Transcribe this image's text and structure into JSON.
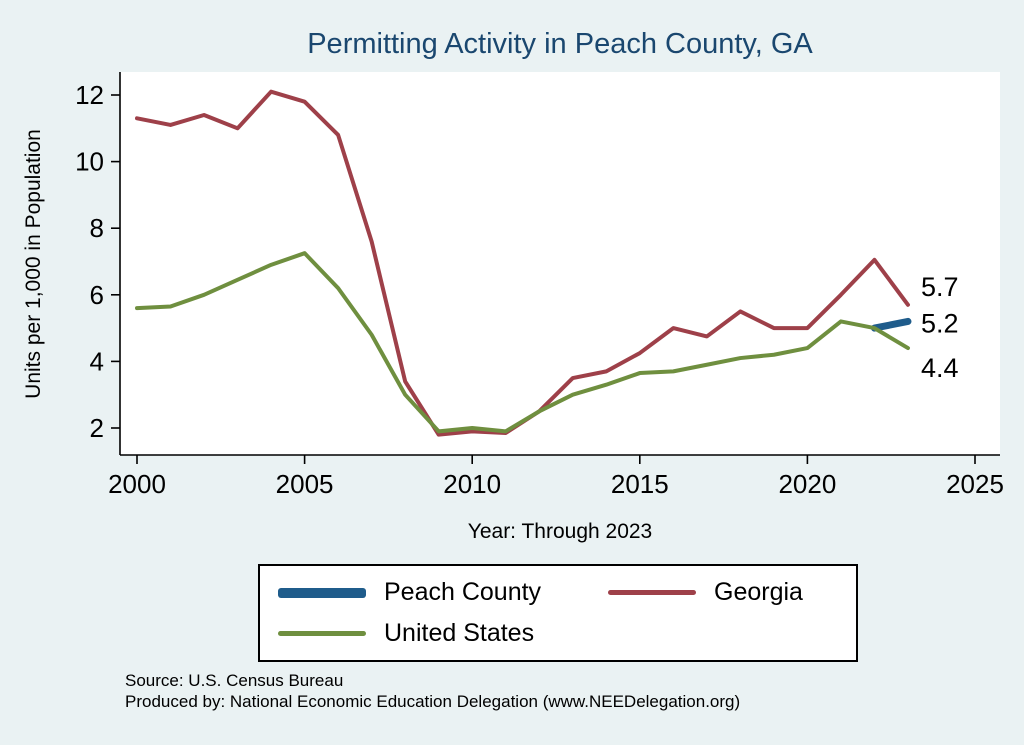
{
  "title": "Permitting Activity in Peach County, GA",
  "xlabel": "Year: Through 2023",
  "ylabel": "Units per 1,000 in Population",
  "source_line1": "Source: U.S. Census Bureau",
  "source_line2": "Produced by: National Economic Education Delegation (www.NEEDelegation.org)",
  "chart_data": {
    "type": "line",
    "title": "Permitting Activity in Peach County, GA",
    "xlabel": "Year: Through 2023",
    "ylabel": "Units per 1,000 in Population",
    "x_ticks": [
      2000,
      2005,
      2010,
      2015,
      2020,
      2025
    ],
    "y_ticks": [
      2,
      4,
      6,
      8,
      10,
      12
    ],
    "xlim": [
      1999.5,
      2025.7
    ],
    "ylim": [
      1.5,
      12.4
    ],
    "grid": false,
    "legend_position": "bottom",
    "colors": {
      "background": "#eaf2f3",
      "plot_background": "#ffffff",
      "title": "#1a476f",
      "axis": "#000000"
    },
    "series": [
      {
        "name": "Peach County",
        "color": "#1f5c8b",
        "width": 7,
        "x": [
          2022,
          2023
        ],
        "values": [
          5.0,
          5.2
        ]
      },
      {
        "name": "Georgia",
        "color": "#9e4049",
        "width": 4,
        "x": [
          2000,
          2001,
          2002,
          2003,
          2004,
          2005,
          2006,
          2007,
          2008,
          2009,
          2010,
          2011,
          2012,
          2013,
          2014,
          2015,
          2016,
          2017,
          2018,
          2019,
          2020,
          2021,
          2022,
          2023
        ],
        "values": [
          11.3,
          11.1,
          11.4,
          11.0,
          12.1,
          11.8,
          10.8,
          7.6,
          3.4,
          1.8,
          1.9,
          1.85,
          2.5,
          3.5,
          3.7,
          4.25,
          5.0,
          4.75,
          5.5,
          5.0,
          5.0,
          6.0,
          7.05,
          5.7
        ]
      },
      {
        "name": "United States",
        "color": "#6f8f3f",
        "width": 4,
        "x": [
          2000,
          2001,
          2002,
          2003,
          2004,
          2005,
          2006,
          2007,
          2008,
          2009,
          2010,
          2011,
          2012,
          2013,
          2014,
          2015,
          2016,
          2017,
          2018,
          2019,
          2020,
          2021,
          2022,
          2023
        ],
        "values": [
          5.6,
          5.65,
          6.0,
          6.45,
          6.9,
          7.25,
          6.2,
          4.8,
          3.0,
          1.9,
          2.0,
          1.9,
          2.5,
          3.0,
          3.3,
          3.65,
          3.7,
          3.9,
          4.1,
          4.2,
          4.4,
          5.2,
          5.0,
          4.4
        ]
      }
    ],
    "end_labels": [
      {
        "text": "5.7",
        "value": 5.7,
        "dy": -18,
        "series": "Georgia"
      },
      {
        "text": "5.2",
        "value": 5.2,
        "dy": 2,
        "series": "Peach County"
      },
      {
        "text": "4.4",
        "value": 4.4,
        "dy": 20,
        "series": "United States"
      }
    ]
  }
}
